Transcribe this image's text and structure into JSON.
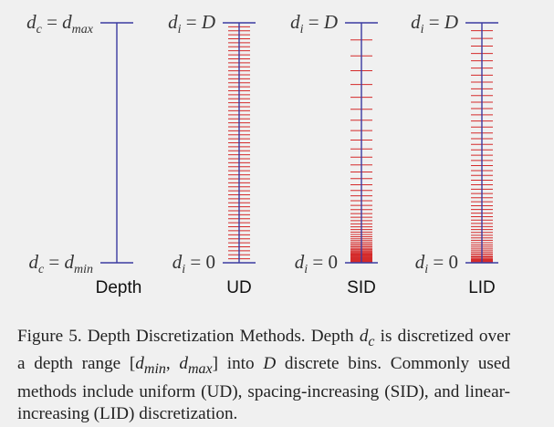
{
  "columns": [
    {
      "id": "depth",
      "name": "Depth",
      "top_label": {
        "var": "d",
        "sub": "c",
        "eq": " = ",
        "rhs": "d",
        "rhs_sub": "max"
      },
      "bottom_label": {
        "var": "d",
        "sub": "c",
        "eq": " = ",
        "rhs": "d",
        "rhs_sub": "min"
      },
      "spacing": "none"
    },
    {
      "id": "ud",
      "name": "UD",
      "top_label": {
        "var": "d",
        "sub": "i",
        "eq": " = ",
        "rhs": "D",
        "rhs_sub": ""
      },
      "bottom_label": {
        "var": "d",
        "sub": "i",
        "eq": " = ",
        "rhs": "0",
        "rhs_sub": ""
      },
      "spacing": "uniform"
    },
    {
      "id": "sid",
      "name": "SID",
      "top_label": {
        "var": "d",
        "sub": "i",
        "eq": " = ",
        "rhs": "D",
        "rhs_sub": ""
      },
      "bottom_label": {
        "var": "d",
        "sub": "i",
        "eq": " = ",
        "rhs": "0",
        "rhs_sub": ""
      },
      "spacing": "spacing-increasing"
    },
    {
      "id": "lid",
      "name": "LID",
      "top_label": {
        "var": "d",
        "sub": "i",
        "eq": " = ",
        "rhs": "D",
        "rhs_sub": ""
      },
      "bottom_label": {
        "var": "d",
        "sub": "i",
        "eq": " = ",
        "rhs": "0",
        "rhs_sub": ""
      },
      "spacing": "linear-increasing"
    }
  ],
  "colors": {
    "axis": "#3a3aa0",
    "bins": "#d42a2a"
  },
  "caption": {
    "p1": "Figure 5. Depth Discretization Methods. Depth ",
    "m1": "d",
    "m1_sub": "c",
    "p2": " is discretized over a depth range ",
    "m2_open": "[",
    "m2_a": "d",
    "m2_a_sub": "min",
    "m2_sep": ", ",
    "m2_b": "d",
    "m2_b_sub": "max",
    "m2_close": "]",
    "p3": " into ",
    "m3": "D",
    "p4": " discrete bins. Commonly used methods include uniform (UD), spacing-increasing (SID), and linear-increasing (LID) discretization."
  }
}
